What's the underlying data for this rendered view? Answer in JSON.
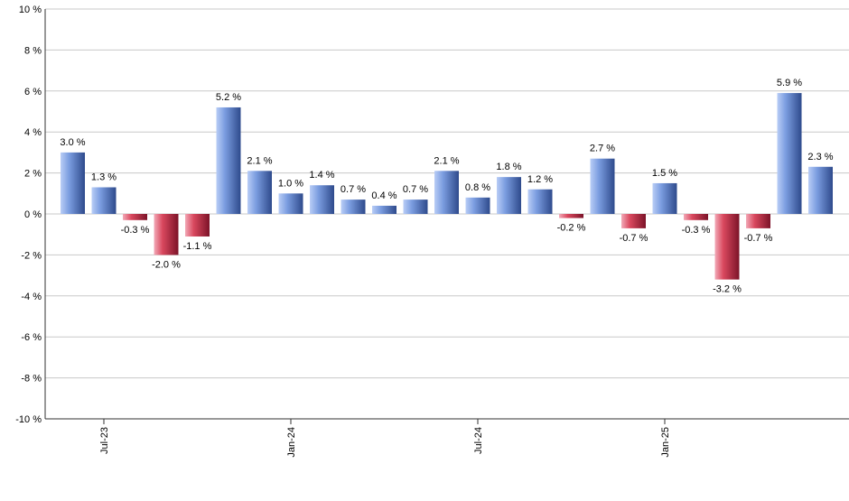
{
  "chart_data": {
    "type": "bar",
    "title": "",
    "xlabel": "",
    "ylabel": "",
    "ylim": [
      -10,
      10
    ],
    "y_ticks": [
      10,
      8,
      6,
      4,
      2,
      0,
      -2,
      -4,
      -6,
      -8,
      -10
    ],
    "y_tick_labels": [
      "10 %",
      "8 %",
      "6 %",
      "4 %",
      "2 %",
      "0 %",
      "-2 %",
      "-4 %",
      "-6 %",
      "-8 %",
      "-10 %"
    ],
    "unit_suffix": " %",
    "grid": true,
    "values": [
      3.0,
      1.3,
      -0.3,
      -2.0,
      -1.1,
      5.2,
      2.1,
      1.0,
      1.4,
      0.7,
      0.4,
      0.7,
      2.1,
      0.8,
      1.8,
      1.2,
      -0.2,
      2.7,
      -0.7,
      1.5,
      -0.3,
      -3.2,
      -0.7,
      5.9,
      2.3
    ],
    "value_labels": [
      "3.0 %",
      "1.3 %",
      "-0.3 %",
      "-2.0 %",
      "-1.1 %",
      "5.2 %",
      "2.1 %",
      "1.0 %",
      "1.4 %",
      "0.7 %",
      "0.4 %",
      "0.7 %",
      "2.1 %",
      "0.8 %",
      "1.8 %",
      "1.2 %",
      "-0.2 %",
      "2.7 %",
      "-0.7 %",
      "1.5 %",
      "-0.3 %",
      "-3.2 %",
      "-0.7 %",
      "5.9 %",
      "2.3 %"
    ],
    "x_tick_labels": [
      {
        "label": "Jul-23",
        "index": 1
      },
      {
        "label": "Jan-24",
        "index": 7
      },
      {
        "label": "Jul-24",
        "index": 13
      },
      {
        "label": "Jan-25",
        "index": 19
      }
    ],
    "colors": {
      "positive_light": "#b9cdf6",
      "positive_mid": "#7b9de0",
      "positive_dark": "#2e4a8c",
      "negative_light": "#f2a9b7",
      "negative_mid": "#d9485e",
      "negative_dark": "#7c1328",
      "grid": "#c8c8c8",
      "axis": "#333333",
      "text": "#000000"
    }
  }
}
